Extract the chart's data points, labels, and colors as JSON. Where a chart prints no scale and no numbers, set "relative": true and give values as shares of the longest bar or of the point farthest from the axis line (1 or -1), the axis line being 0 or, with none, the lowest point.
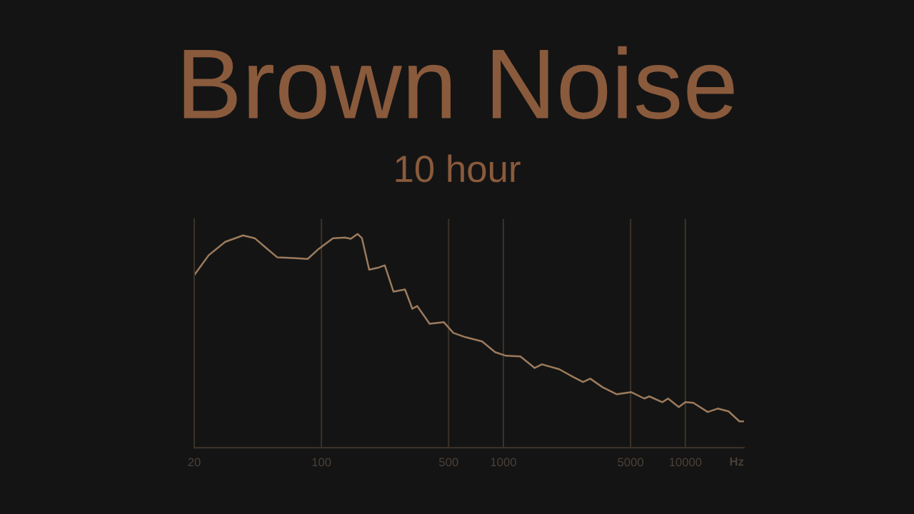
{
  "chart_data": {
    "type": "line",
    "title": "Brown Noise",
    "subtitle": "10 hour",
    "xlabel": "Hz",
    "relative": true,
    "log": "x",
    "grid": "x",
    "tick_labels": "x",
    "marker": "none",
    "line_style": "solid",
    "xlim": [
      20,
      21000
    ],
    "xticks": [
      20,
      100,
      500,
      1000,
      5000,
      10000
    ],
    "series": [
      {
        "color": "#9c7b5c",
        "x": [
          20,
          24,
          29.6,
          37.1,
          43,
          49.9,
          57.3,
          70.6,
          84,
          96.6,
          115.7,
          135,
          145,
          158,
          167,
          183,
          207,
          223,
          249,
          288,
          316,
          336,
          393,
          471,
          531,
          619,
          764,
          900,
          1032,
          1239,
          1486,
          1629,
          2028,
          2432,
          2740,
          3000,
          3505,
          4203,
          5047,
          5945,
          6340,
          7470,
          8035,
          9204,
          10000,
          11060,
          13270,
          15070,
          17290,
          19820,
          20900
        ],
        "values": [
          0.807,
          0.9,
          0.963,
          0.993,
          0.98,
          0.933,
          0.89,
          0.887,
          0.883,
          0.93,
          0.98,
          0.983,
          0.977,
          1.0,
          0.98,
          0.833,
          0.843,
          0.853,
          0.73,
          0.74,
          0.65,
          0.663,
          0.58,
          0.587,
          0.537,
          0.517,
          0.497,
          0.447,
          0.43,
          0.427,
          0.373,
          0.39,
          0.367,
          0.33,
          0.307,
          0.323,
          0.283,
          0.25,
          0.26,
          0.23,
          0.24,
          0.213,
          0.23,
          0.19,
          0.213,
          0.21,
          0.167,
          0.183,
          0.17,
          0.123,
          0.123
        ]
      }
    ]
  }
}
